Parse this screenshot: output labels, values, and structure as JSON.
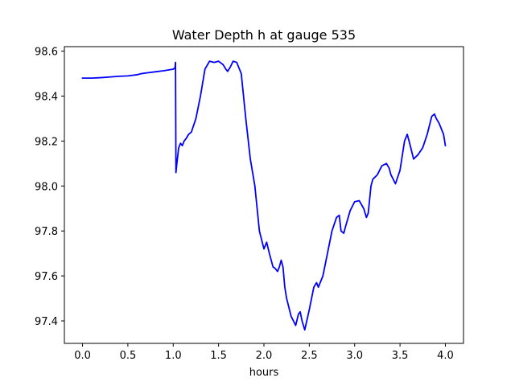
{
  "chart_data": {
    "type": "line",
    "title": "Water Depth h at gauge 535",
    "xlabel": "hours",
    "ylabel": "",
    "xlim": [
      -0.2,
      4.2
    ],
    "ylim": [
      97.3,
      98.62
    ],
    "x_ticks": [
      0.0,
      0.5,
      1.0,
      1.5,
      2.0,
      2.5,
      3.0,
      3.5,
      4.0
    ],
    "x_tick_labels": [
      "0.0",
      "0.5",
      "1.0",
      "1.5",
      "2.0",
      "2.5",
      "3.0",
      "3.5",
      "4.0"
    ],
    "y_ticks": [
      97.4,
      97.6,
      97.8,
      98.0,
      98.2,
      98.4,
      98.6
    ],
    "y_tick_labels": [
      "97.4",
      "97.6",
      "97.8",
      "98.0",
      "98.2",
      "98.4",
      "98.6"
    ],
    "grid": false,
    "legend": "none",
    "series": [
      {
        "color": "#0000ff",
        "x": [
          0.0,
          0.1,
          0.2,
          0.3,
          0.4,
          0.5,
          0.6,
          0.65,
          0.7,
          0.8,
          0.9,
          1.0,
          1.02,
          1.025,
          1.03,
          1.04,
          1.06,
          1.08,
          1.1,
          1.12,
          1.14,
          1.17,
          1.2,
          1.25,
          1.3,
          1.35,
          1.4,
          1.45,
          1.5,
          1.55,
          1.58,
          1.6,
          1.63,
          1.66,
          1.7,
          1.75,
          1.8,
          1.85,
          1.9,
          1.95,
          2.0,
          2.03,
          2.06,
          2.08,
          2.1,
          2.12,
          2.15,
          2.17,
          2.19,
          2.21,
          2.23,
          2.25,
          2.3,
          2.35,
          2.38,
          2.4,
          2.42,
          2.45,
          2.5,
          2.55,
          2.58,
          2.6,
          2.65,
          2.7,
          2.75,
          2.8,
          2.83,
          2.85,
          2.88,
          2.9,
          2.95,
          3.0,
          3.05,
          3.1,
          3.13,
          3.15,
          3.18,
          3.2,
          3.25,
          3.3,
          3.35,
          3.38,
          3.4,
          3.45,
          3.5,
          3.55,
          3.58,
          3.6,
          3.65,
          3.7,
          3.75,
          3.8,
          3.85,
          3.88,
          3.9,
          3.93,
          3.95,
          3.98,
          4.0
        ],
        "y": [
          98.48,
          98.48,
          98.482,
          98.485,
          98.488,
          98.49,
          98.495,
          98.5,
          98.503,
          98.508,
          98.513,
          98.52,
          98.525,
          98.55,
          98.06,
          98.1,
          98.17,
          98.19,
          98.18,
          98.2,
          98.21,
          98.23,
          98.24,
          98.3,
          98.4,
          98.52,
          98.555,
          98.55,
          98.555,
          98.54,
          98.52,
          98.51,
          98.53,
          98.555,
          98.55,
          98.5,
          98.3,
          98.12,
          98.0,
          97.8,
          97.72,
          97.75,
          97.7,
          97.67,
          97.64,
          97.635,
          97.62,
          97.64,
          97.67,
          97.64,
          97.55,
          97.5,
          97.42,
          97.38,
          97.43,
          97.44,
          97.4,
          97.36,
          97.45,
          97.55,
          97.57,
          97.55,
          97.6,
          97.7,
          97.8,
          97.86,
          97.87,
          97.8,
          97.79,
          97.82,
          97.89,
          97.93,
          97.935,
          97.9,
          97.86,
          97.88,
          98.0,
          98.03,
          98.05,
          98.09,
          98.1,
          98.08,
          98.05,
          98.01,
          98.07,
          98.2,
          98.23,
          98.2,
          98.12,
          98.14,
          98.17,
          98.23,
          98.31,
          98.32,
          98.3,
          98.28,
          98.26,
          98.23,
          98.18
        ]
      }
    ]
  }
}
